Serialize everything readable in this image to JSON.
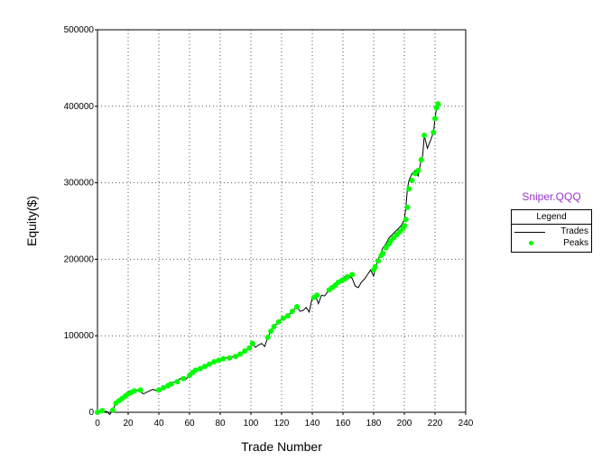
{
  "chart_data": {
    "type": "line",
    "xlabel": "Trade Number",
    "ylabel": "Equity($)",
    "xlim": [
      0,
      240
    ],
    "ylim": [
      0,
      500000
    ],
    "xticks": [
      "0",
      "20",
      "40",
      "60",
      "80",
      "100",
      "120",
      "140",
      "160",
      "180",
      "200",
      "220",
      "240"
    ],
    "yticks": [
      "0",
      "100000",
      "200000",
      "300000",
      "400000",
      "500000"
    ],
    "grid": true,
    "legend_position": "right",
    "strategy_name": "Sniper.QQQ",
    "colors": {
      "trades": "#000000",
      "peaks": "#00ff00",
      "strategy_name": "#9933cc"
    },
    "series": [
      {
        "name": "Trades",
        "x": [
          0,
          3,
          6,
          8,
          9,
          10,
          12,
          15,
          18,
          21,
          24,
          27,
          30,
          33,
          36,
          39,
          42,
          45,
          48,
          51,
          54,
          57,
          60,
          63,
          66,
          69,
          72,
          75,
          78,
          81,
          84,
          87,
          90,
          93,
          96,
          99,
          101,
          103,
          105,
          107,
          109,
          111,
          113,
          115,
          118,
          121,
          124,
          127,
          130,
          132,
          134,
          136,
          138,
          140,
          142,
          144,
          146,
          148,
          151,
          154,
          157,
          160,
          163,
          166,
          168,
          170,
          172,
          174,
          176,
          178,
          180,
          182,
          184,
          186,
          188,
          190,
          192,
          194,
          196,
          198,
          200,
          201,
          202,
          203,
          205,
          207,
          209,
          211,
          212,
          213,
          215,
          217,
          219,
          220,
          221,
          222
        ],
        "y": [
          0,
          2000,
          1000,
          -3000,
          0,
          3000,
          12000,
          18000,
          24000,
          28000,
          30000,
          28000,
          24000,
          27000,
          30000,
          28000,
          32000,
          35000,
          38000,
          40000,
          44000,
          42000,
          48000,
          53000,
          57000,
          60000,
          63000,
          66000,
          68000,
          70000,
          71000,
          72000,
          73000,
          76000,
          80000,
          84000,
          90000,
          85000,
          88000,
          90000,
          86000,
          98000,
          106000,
          112000,
          118000,
          123000,
          126000,
          132000,
          138000,
          132000,
          133000,
          137000,
          131000,
          150000,
          153000,
          142000,
          153000,
          152000,
          160000,
          167000,
          172000,
          176000,
          180000,
          175000,
          165000,
          163000,
          170000,
          174000,
          180000,
          186000,
          178000,
          195000,
          205000,
          215000,
          220000,
          228000,
          232000,
          236000,
          240000,
          244000,
          252000,
          268000,
          292000,
          303000,
          312000,
          316000,
          309000,
          330000,
          336000,
          362000,
          345000,
          355000,
          366000,
          384000,
          398000,
          403000
        ]
      },
      {
        "name": "Peaks",
        "x": [
          0,
          3,
          10,
          12,
          14,
          16,
          18,
          20,
          22,
          24,
          28,
          40,
          43,
          46,
          48,
          52,
          56,
          60,
          62,
          64,
          67,
          70,
          73,
          76,
          79,
          82,
          86,
          90,
          93,
          96,
          99,
          101,
          111,
          113,
          115,
          118,
          121,
          124,
          127,
          130,
          141,
          143,
          151,
          153,
          155,
          157,
          159,
          161,
          163,
          166,
          180,
          181,
          183,
          185,
          186,
          188,
          190,
          191,
          193,
          195,
          197,
          199,
          200,
          201,
          202,
          203,
          205,
          207,
          209,
          211,
          213,
          219,
          220,
          221,
          222
        ],
        "y": [
          0,
          2000,
          3000,
          12000,
          15000,
          18000,
          21000,
          24000,
          26000,
          28000,
          29000,
          29000,
          32000,
          35000,
          37000,
          40000,
          44000,
          48000,
          52000,
          55000,
          57000,
          60000,
          63000,
          66000,
          68000,
          70000,
          71000,
          73000,
          76000,
          80000,
          84000,
          90000,
          98000,
          106000,
          112000,
          118000,
          123000,
          126000,
          132000,
          138000,
          150000,
          153000,
          160000,
          163000,
          166000,
          170000,
          172000,
          174000,
          177000,
          180000,
          186000,
          190000,
          198000,
          205000,
          208000,
          215000,
          220000,
          224000,
          228000,
          232000,
          236000,
          240000,
          244000,
          252000,
          268000,
          292000,
          303000,
          312000,
          316000,
          330000,
          362000,
          366000,
          384000,
          398000,
          403000
        ]
      }
    ]
  },
  "legend": {
    "title": "Legend",
    "items": [
      {
        "label": "Trades",
        "kind": "line"
      },
      {
        "label": "Peaks",
        "kind": "dot"
      }
    ]
  }
}
